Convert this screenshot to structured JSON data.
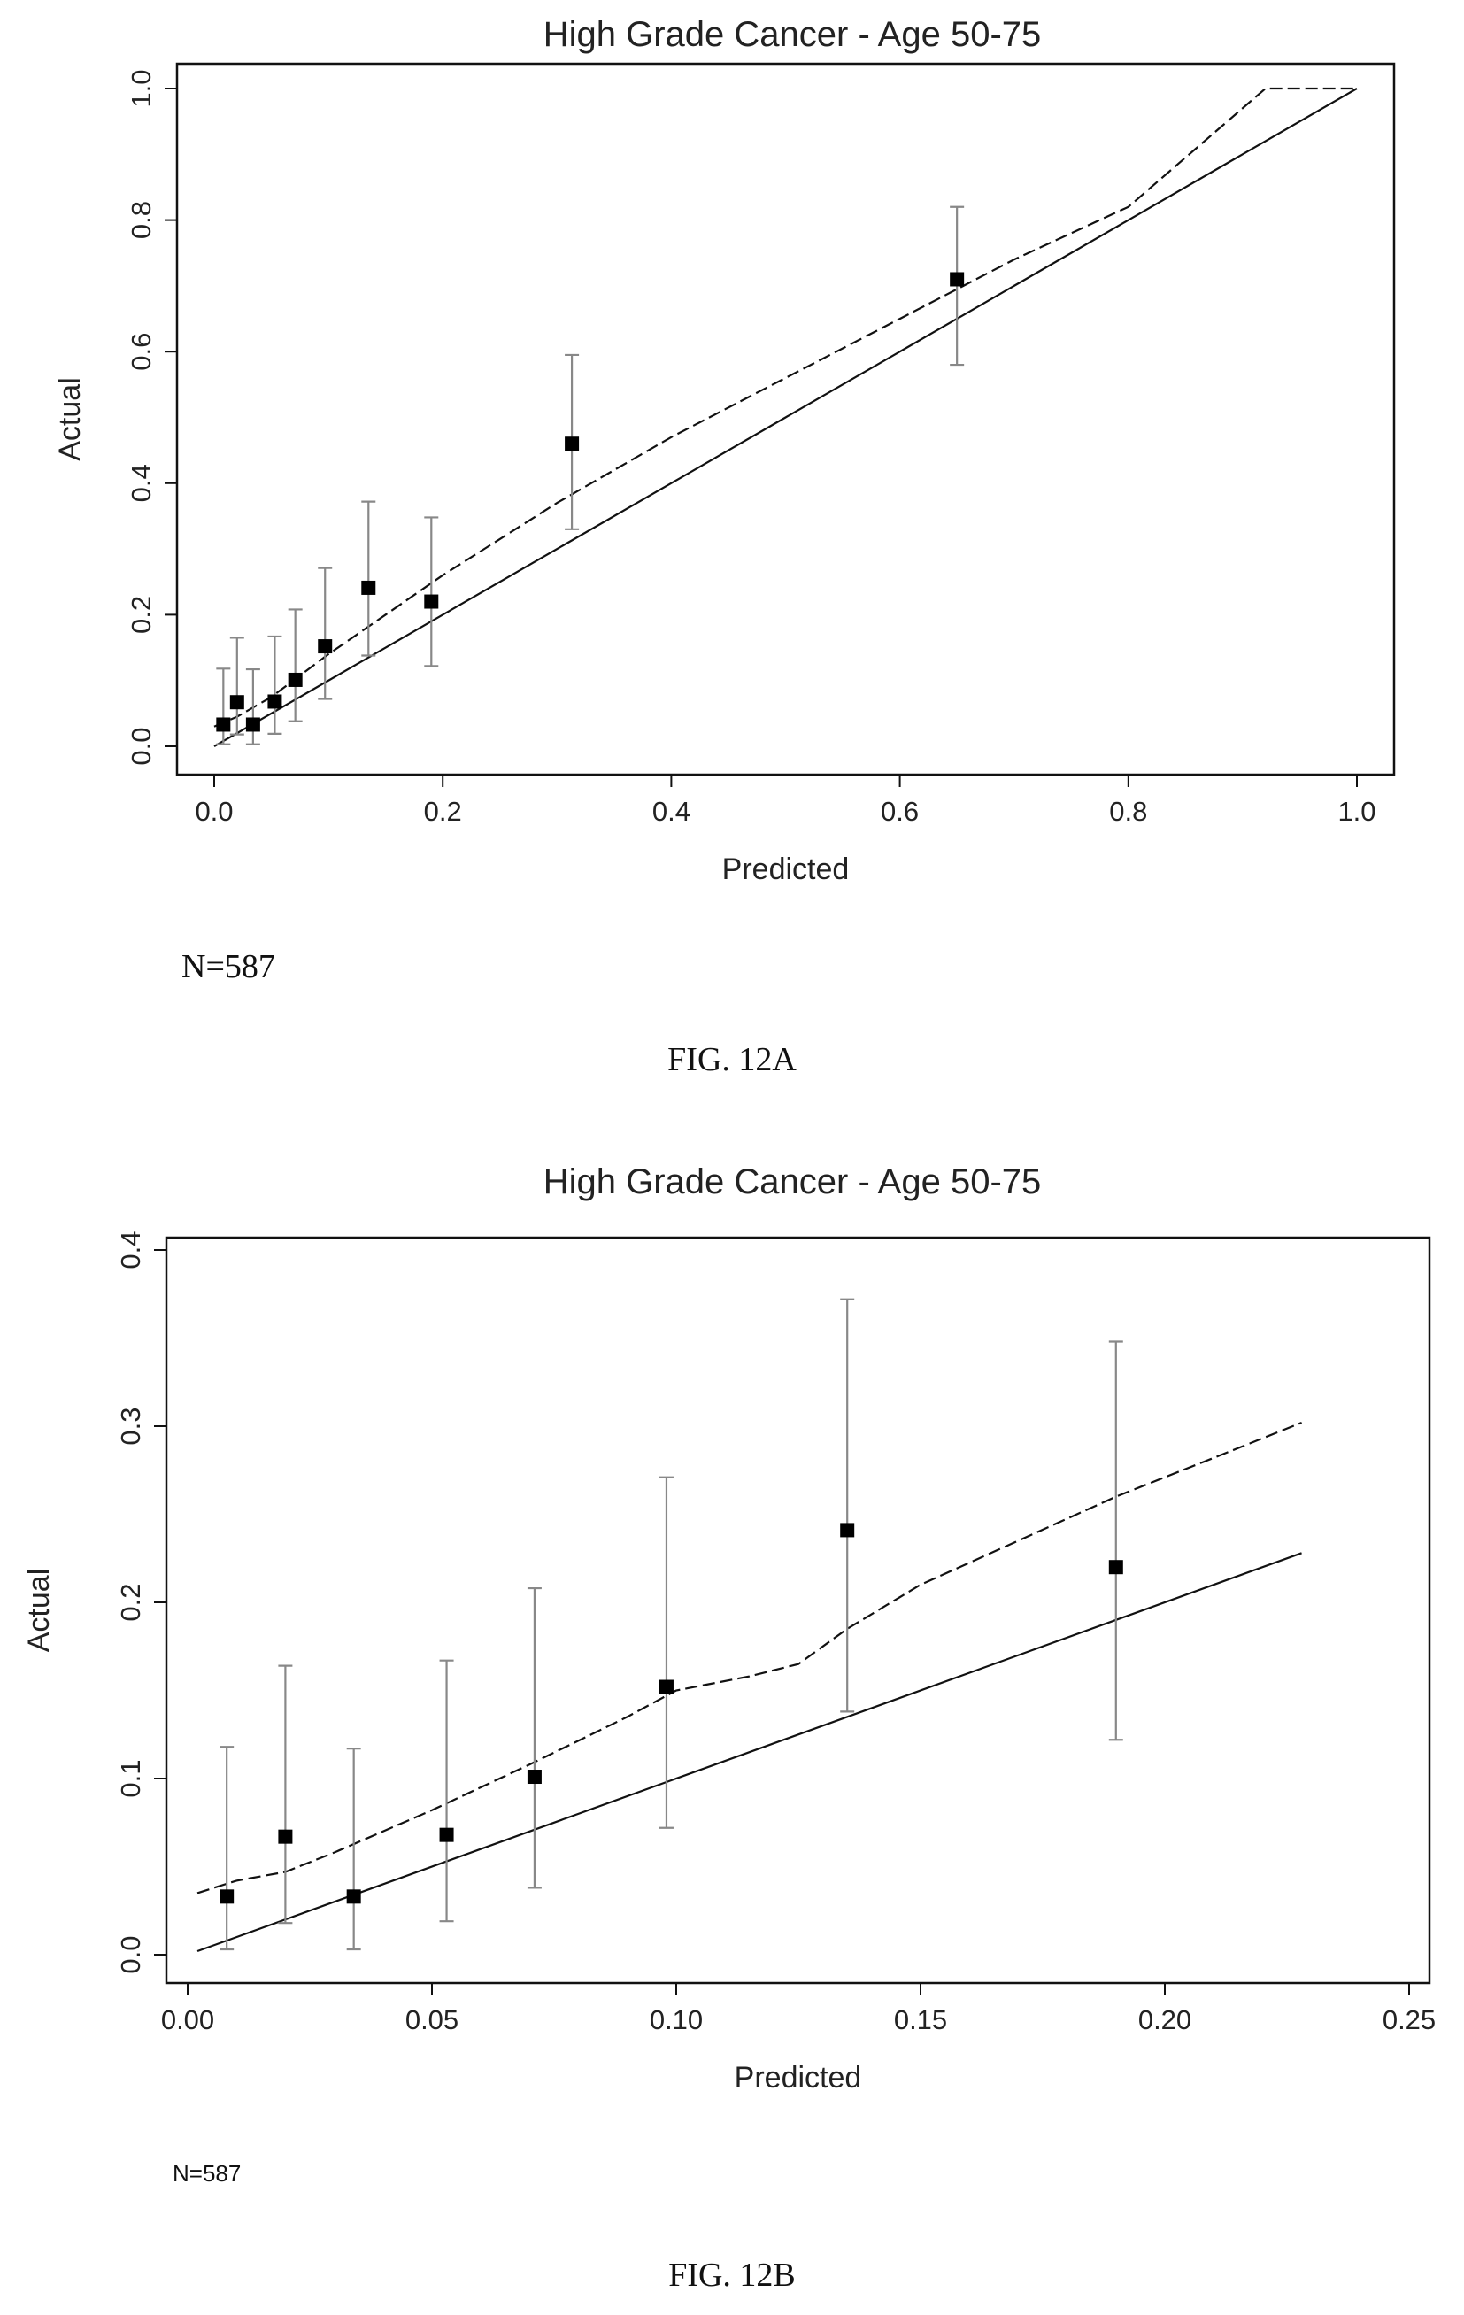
{
  "figure_a": {
    "caption": "FIG. 12A",
    "note": "N=587",
    "chart_data": {
      "type": "scatter",
      "title": "High Grade Cancer - Age 50-75",
      "xlabel": "Predicted",
      "ylabel": "Actual",
      "xlim": [
        0,
        1.0
      ],
      "ylim": [
        0,
        1.0
      ],
      "xticks": [
        "0.0",
        "0.2",
        "0.4",
        "0.6",
        "0.8",
        "1.0"
      ],
      "yticks": [
        "0.0",
        "0.2",
        "0.4",
        "0.6",
        "0.8",
        "1.0"
      ],
      "grid": false,
      "points": [
        {
          "x": 0.008,
          "y": 0.033,
          "lo": 0.003,
          "hi": 0.118
        },
        {
          "x": 0.02,
          "y": 0.067,
          "lo": 0.018,
          "hi": 0.165
        },
        {
          "x": 0.034,
          "y": 0.033,
          "lo": 0.003,
          "hi": 0.117
        },
        {
          "x": 0.053,
          "y": 0.068,
          "lo": 0.019,
          "hi": 0.167
        },
        {
          "x": 0.071,
          "y": 0.101,
          "lo": 0.038,
          "hi": 0.208
        },
        {
          "x": 0.097,
          "y": 0.152,
          "lo": 0.072,
          "hi": 0.271
        },
        {
          "x": 0.135,
          "y": 0.241,
          "lo": 0.138,
          "hi": 0.372
        },
        {
          "x": 0.19,
          "y": 0.22,
          "lo": 0.122,
          "hi": 0.348
        },
        {
          "x": 0.313,
          "y": 0.46,
          "lo": 0.33,
          "hi": 0.595
        },
        {
          "x": 0.65,
          "y": 0.71,
          "lo": 0.58,
          "hi": 0.82
        }
      ],
      "reference_line": {
        "x": [
          0,
          1.0
        ],
        "y": [
          0,
          1.0
        ]
      },
      "smoothed_curve": {
        "x": [
          0.0,
          0.02,
          0.05,
          0.1,
          0.2,
          0.3,
          0.4,
          0.5,
          0.6,
          0.7,
          0.8,
          0.92,
          1.0
        ],
        "y": [
          0.03,
          0.045,
          0.075,
          0.14,
          0.26,
          0.37,
          0.47,
          0.56,
          0.65,
          0.74,
          0.82,
          1.0,
          1.0
        ]
      }
    }
  },
  "figure_b": {
    "caption": "FIG. 12B",
    "note": "N=587",
    "chart_data": {
      "type": "scatter",
      "title": "High Grade Cancer - Age 50-75",
      "xlabel": "Predicted",
      "ylabel": "Actual",
      "xlim": [
        0,
        0.25
      ],
      "ylim": [
        0,
        0.4
      ],
      "xticks": [
        "0.00",
        "0.05",
        "0.10",
        "0.15",
        "0.20",
        "0.25"
      ],
      "yticks": [
        "0.0",
        "0.1",
        "0.2",
        "0.3",
        "0.4"
      ],
      "grid": false,
      "points": [
        {
          "x": 0.008,
          "y": 0.033,
          "lo": 0.003,
          "hi": 0.118
        },
        {
          "x": 0.02,
          "y": 0.067,
          "lo": 0.018,
          "hi": 0.164
        },
        {
          "x": 0.034,
          "y": 0.033,
          "lo": 0.003,
          "hi": 0.117
        },
        {
          "x": 0.053,
          "y": 0.068,
          "lo": 0.019,
          "hi": 0.167
        },
        {
          "x": 0.071,
          "y": 0.101,
          "lo": 0.038,
          "hi": 0.208
        },
        {
          "x": 0.098,
          "y": 0.152,
          "lo": 0.072,
          "hi": 0.271
        },
        {
          "x": 0.135,
          "y": 0.241,
          "lo": 0.138,
          "hi": 0.372
        },
        {
          "x": 0.19,
          "y": 0.22,
          "lo": 0.122,
          "hi": 0.348
        }
      ],
      "reference_line": {
        "x": [
          0.002,
          0.228
        ],
        "y": [
          0.002,
          0.228
        ]
      },
      "smoothed_curve": {
        "x": [
          0.002,
          0.01,
          0.02,
          0.03,
          0.05,
          0.07,
          0.09,
          0.1,
          0.115,
          0.125,
          0.135,
          0.15,
          0.17,
          0.19,
          0.21,
          0.228
        ],
        "y": [
          0.035,
          0.042,
          0.047,
          0.058,
          0.082,
          0.108,
          0.135,
          0.15,
          0.158,
          0.165,
          0.185,
          0.21,
          0.235,
          0.26,
          0.282,
          0.302
        ]
      }
    }
  }
}
